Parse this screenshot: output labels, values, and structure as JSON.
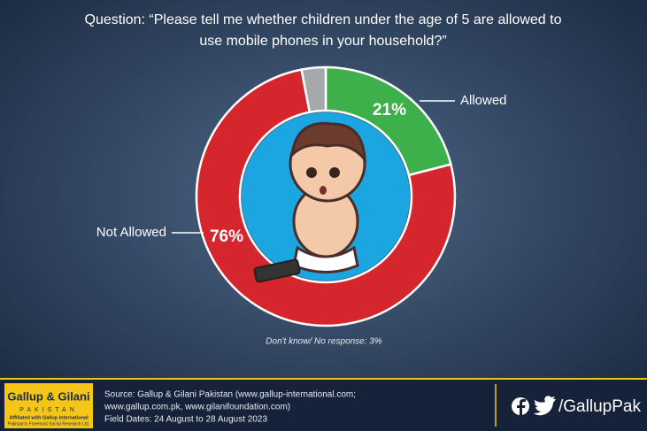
{
  "chart_data": {
    "type": "donut",
    "title_lines": [
      "Question: “Please tell me whether children under the age of 5 are allowed to",
      "use mobile phones in your household?”"
    ],
    "categories": [
      "Allowed",
      "Not Allowed",
      null
    ],
    "values": [
      21,
      76,
      3
    ],
    "value_labels": [
      "21%",
      "76%",
      null
    ],
    "colors": [
      "#3db04b",
      "#d4262c",
      "#a6a8ab"
    ],
    "note": "Don't know/ No response: 3%"
  },
  "footer": {
    "logo": {
      "name": "Gallup & Gilani",
      "sub": "PAKISTAN",
      "tagline": "Affiliated with Gallup International",
      "tagline2": "Pakistan's Foremost Social Research Ltd."
    },
    "source": [
      "Source: Gallup & Gilani Pakistan (www.gallup-international.com;",
      "www.gallup.com.pk, www.gilanifoundation.com)",
      "Field Dates: 24 August to 28 August 2023"
    ],
    "handle": "/GallupPak"
  }
}
